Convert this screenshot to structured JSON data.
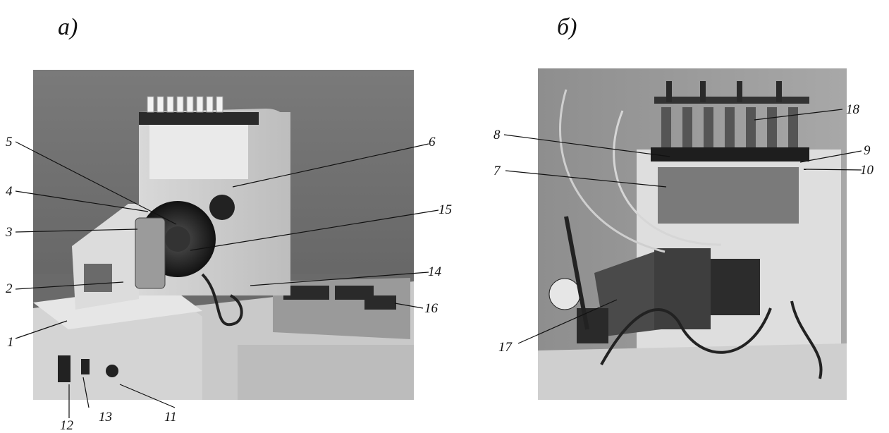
{
  "panels": [
    {
      "label": "a)",
      "callouts": [
        "1",
        "2",
        "3",
        "4",
        "5",
        "6",
        "11",
        "12",
        "13",
        "14",
        "15",
        "16"
      ]
    },
    {
      "label": "б)",
      "callouts": [
        "7",
        "8",
        "9",
        "10",
        "17",
        "18"
      ]
    }
  ]
}
